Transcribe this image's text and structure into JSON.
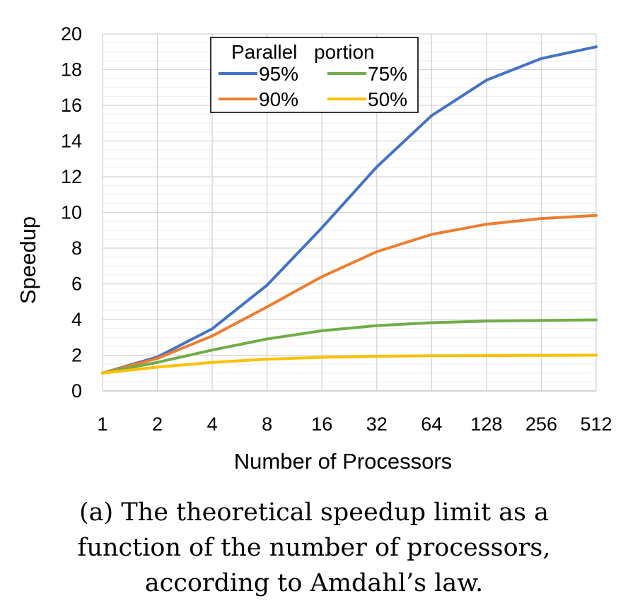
{
  "chart_data": {
    "type": "line",
    "title": "",
    "xlabel": "Number of Processors",
    "ylabel": "Speedup",
    "categories": [
      "1",
      "2",
      "4",
      "8",
      "16",
      "32",
      "64",
      "128",
      "256",
      "512"
    ],
    "ylim": [
      0,
      20
    ],
    "yticks": [
      "0",
      "2",
      "4",
      "6",
      "8",
      "10",
      "12",
      "14",
      "16",
      "18",
      "20"
    ],
    "grid": true,
    "legend": {
      "title_words": [
        "Parallel",
        "portion"
      ],
      "position": "top-left-inside"
    },
    "series": [
      {
        "name": "95%",
        "color": "#4472C4",
        "values": [
          1.0,
          1.9,
          3.48,
          5.93,
          9.14,
          12.55,
          15.42,
          17.41,
          18.62,
          19.28
        ]
      },
      {
        "name": "90%",
        "color": "#ED7D31",
        "values": [
          1.0,
          1.82,
          3.08,
          4.71,
          6.4,
          7.8,
          8.77,
          9.34,
          9.66,
          9.83
        ]
      },
      {
        "name": "75%",
        "color": "#70AD47",
        "values": [
          1.0,
          1.6,
          2.29,
          2.91,
          3.37,
          3.66,
          3.82,
          3.91,
          3.95,
          3.98
        ]
      },
      {
        "name": "50%",
        "color": "#FFC000",
        "values": [
          1.0,
          1.33,
          1.6,
          1.78,
          1.88,
          1.94,
          1.97,
          1.98,
          1.99,
          2.0
        ]
      }
    ]
  },
  "caption": {
    "lines": [
      "(a) The theoretical speedup limit as a",
      "function of the number of processors,",
      "according to Amdahl’s law."
    ]
  }
}
